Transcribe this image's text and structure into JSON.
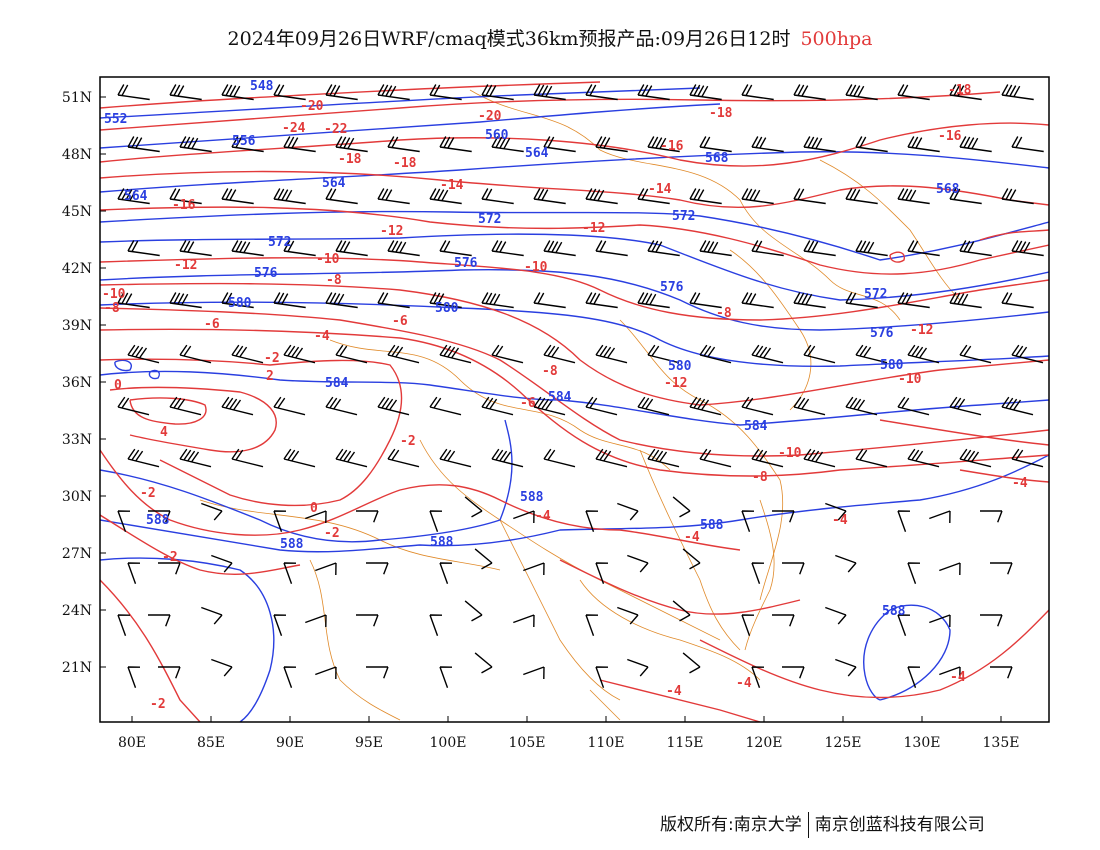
{
  "title": {
    "main": "2024年09月26日WRF/cmaq模式36km预报产品:09月26日12时",
    "level": "500hpa"
  },
  "colors": {
    "height": "#2a3fe0",
    "temperature": "#e23a3a",
    "boundary": "#e08a2a",
    "wind": "#000000"
  },
  "axes": {
    "lat_labels": [
      "51N",
      "48N",
      "45N",
      "42N",
      "39N",
      "36N",
      "33N",
      "30N",
      "27N",
      "24N",
      "21N"
    ],
    "lon_labels": [
      "80E",
      "85E",
      "90E",
      "95E",
      "100E",
      "105E",
      "110E",
      "115E",
      "120E",
      "125E",
      "130E",
      "135E"
    ]
  },
  "height_labels": [
    "548",
    "552",
    "556",
    "560",
    "564",
    "568",
    "572",
    "576",
    "580",
    "584",
    "588"
  ],
  "temperature_labels": [
    "-24",
    "-22",
    "-20",
    "-18",
    "-16",
    "-14",
    "-12",
    "-10",
    "-8",
    "-6",
    "-4",
    "-2",
    "0",
    "2",
    "4"
  ],
  "footer": {
    "left": "版权所有:南京大学",
    "right": "南京创蓝科技有限公司"
  }
}
